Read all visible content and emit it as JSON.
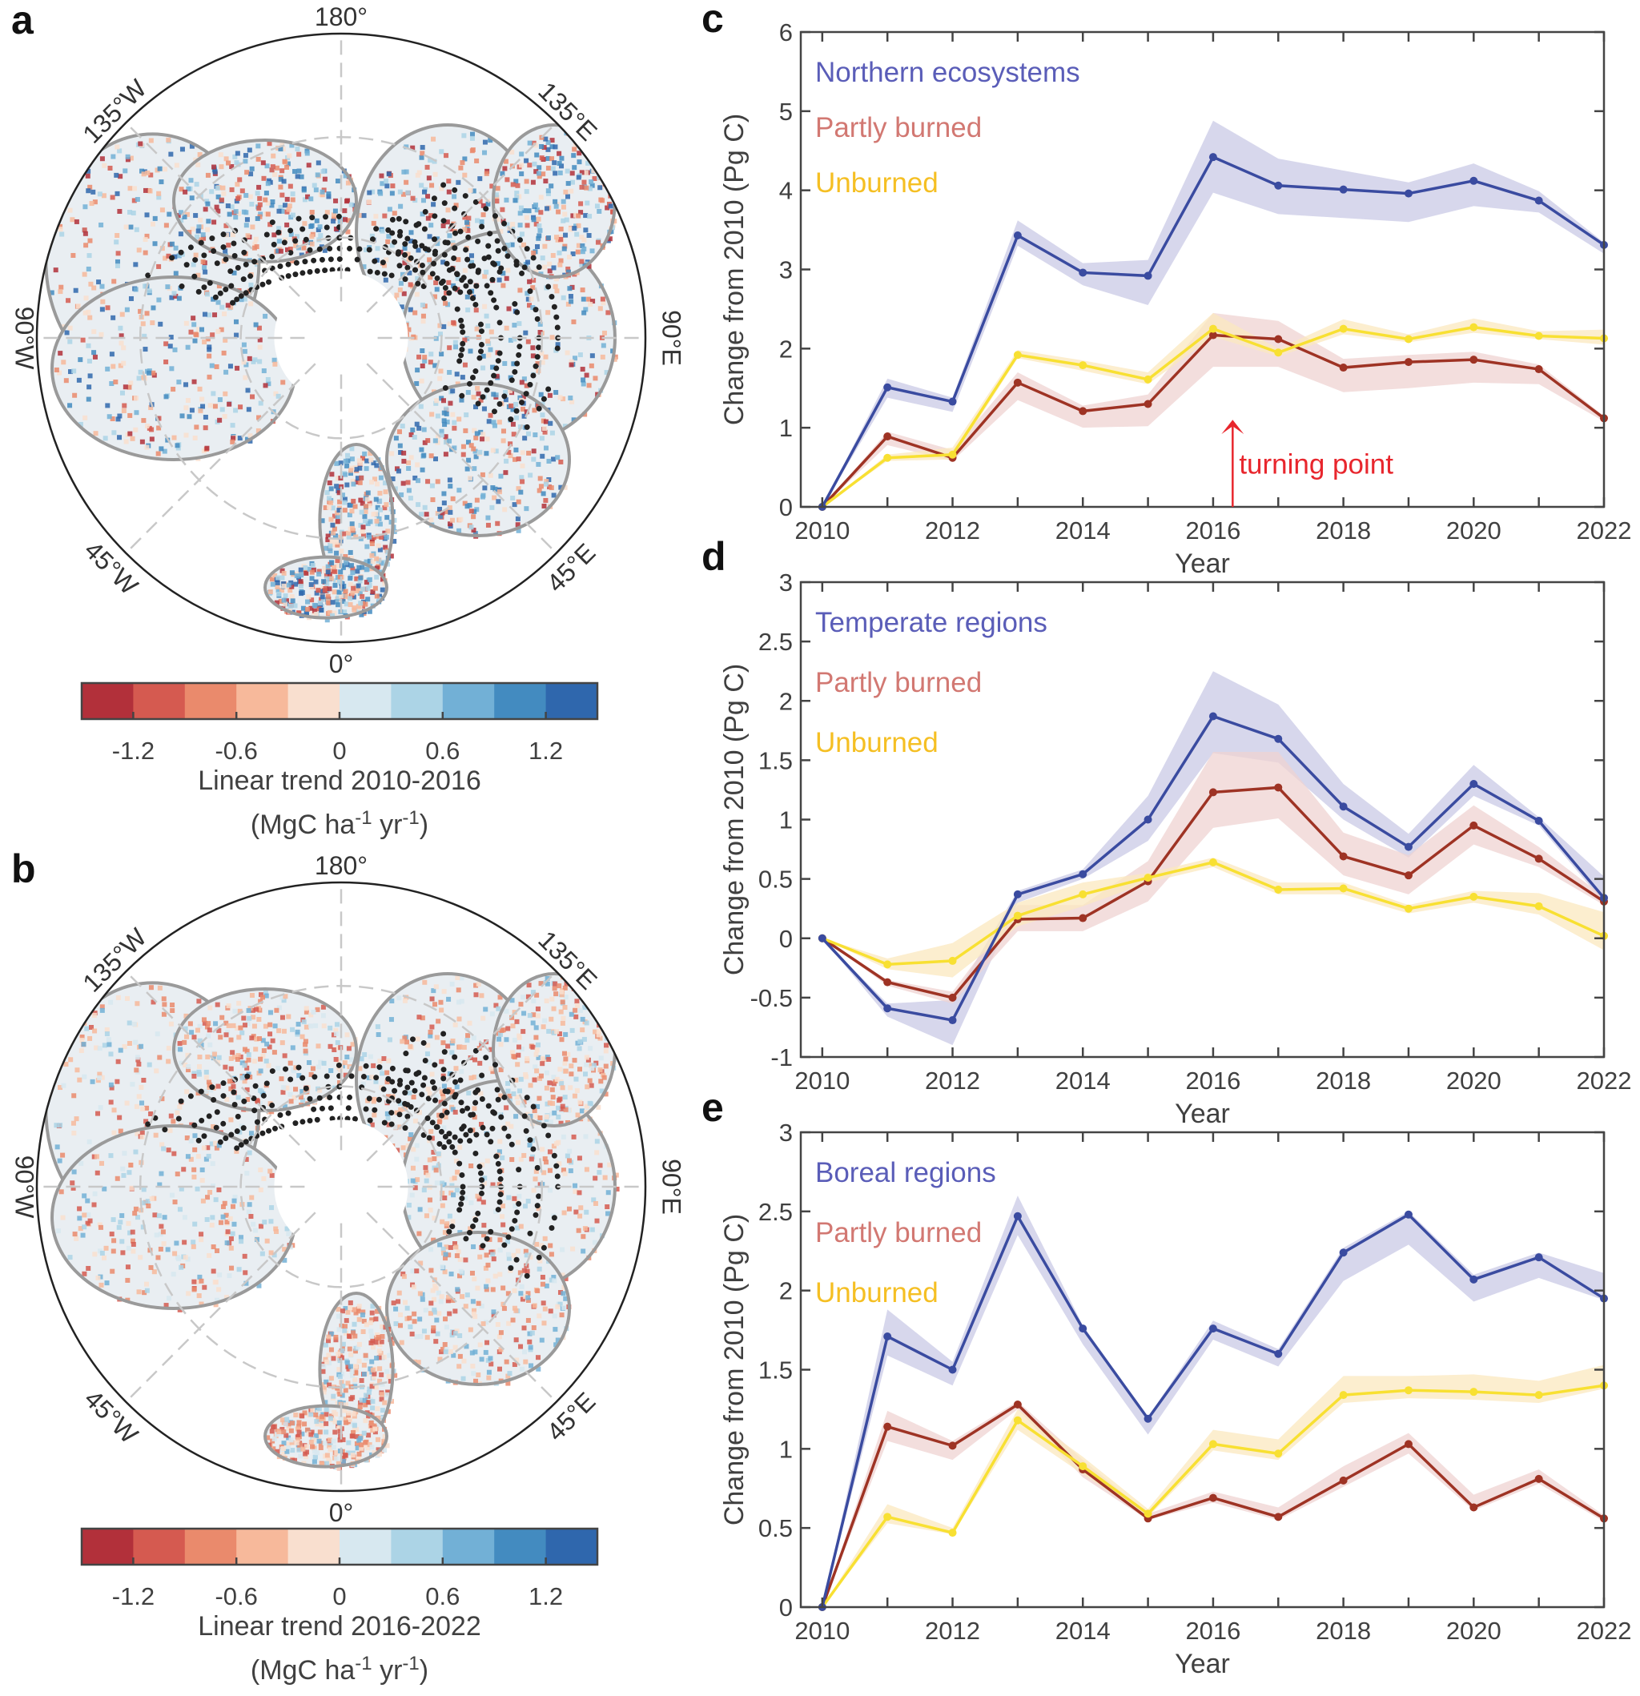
{
  "panels": {
    "a": "a",
    "b": "b",
    "c": "c",
    "d": "d",
    "e": "e"
  },
  "maps": [
    {
      "geo_labels": {
        "top": "180°",
        "bottom": "0°",
        "right": "90°E",
        "left": "90°W",
        "upper_left": "135°W",
        "upper_right": "135°E",
        "lower_left": "45°W",
        "lower_right": "45°E"
      },
      "colorbar": {
        "colors": [
          "#b2303a",
          "#d55a50",
          "#ea8a6c",
          "#f7b99b",
          "#f9dfcf",
          "#d7e8f0",
          "#acd4e6",
          "#72b0d6",
          "#438bc0",
          "#2f67ad"
        ],
        "tick_labels": [
          "-1.2",
          "-0.6",
          "0",
          "0.6",
          "1.2"
        ],
        "title": "Linear trend 2010-2016",
        "units": "(MgC ha",
        "units_sup1": "-1",
        "units_mid": " yr",
        "units_sup2": "-1",
        "units_end": ")"
      }
    },
    {
      "geo_labels": {
        "top": "180°",
        "bottom": "0°",
        "right": "90°E",
        "left": "90°W",
        "upper_left": "135°W",
        "upper_right": "135°E",
        "lower_left": "45°W",
        "lower_right": "45°E"
      },
      "colorbar": {
        "colors": [
          "#b2303a",
          "#d55a50",
          "#ea8a6c",
          "#f7b99b",
          "#f9dfcf",
          "#d7e8f0",
          "#acd4e6",
          "#72b0d6",
          "#438bc0",
          "#2f67ad"
        ],
        "tick_labels": [
          "-1.2",
          "-0.6",
          "0",
          "0.6",
          "1.2"
        ],
        "title": "Linear trend 2016-2022",
        "units": "(MgC ha",
        "units_sup1": "-1",
        "units_mid": " yr",
        "units_sup2": "-1",
        "units_end": ")"
      }
    }
  ],
  "chart_data": [
    {
      "type": "line",
      "panel": "c",
      "xlabel": "Year",
      "ylabel": "Change from 2010 (Pg C)",
      "ylim": [
        0,
        6
      ],
      "yticks": [
        "0",
        "1",
        "2",
        "3",
        "4",
        "5",
        "6"
      ],
      "xticks": [
        "2010",
        "2012",
        "2014",
        "2016",
        "2018",
        "2020",
        "2022"
      ],
      "x": [
        2010,
        2011,
        2012,
        2013,
        2014,
        2015,
        2016,
        2017,
        2018,
        2019,
        2020,
        2021,
        2022
      ],
      "annotation": {
        "text": "turning point",
        "x": 2016.3,
        "color": "#e8262d"
      },
      "series": [
        {
          "name": "Northern ecosystems",
          "color": "#3a4ba0",
          "label_color": "#5a5db8",
          "band_color": "#c9c9e6",
          "values": [
            0,
            1.51,
            1.33,
            3.43,
            2.96,
            2.92,
            4.42,
            4.06,
            4.01,
            3.96,
            4.12,
            3.87,
            3.31
          ],
          "upper": [
            0,
            1.62,
            1.38,
            3.62,
            3.08,
            3.12,
            4.88,
            4.4,
            4.25,
            4.1,
            4.34,
            3.99,
            3.34
          ],
          "lower": [
            0,
            1.38,
            1.2,
            3.3,
            2.8,
            2.55,
            3.97,
            3.7,
            3.65,
            3.6,
            3.8,
            3.72,
            3.2
          ]
        },
        {
          "name": "Partly burned",
          "color": "#9e3324",
          "label_color": "#d27872",
          "band_color": "#efd3d1",
          "values": [
            0,
            0.89,
            0.62,
            1.57,
            1.21,
            1.3,
            2.17,
            2.12,
            1.76,
            1.83,
            1.86,
            1.74,
            1.12
          ],
          "upper": [
            0,
            0.95,
            0.72,
            1.7,
            1.28,
            1.42,
            2.45,
            2.35,
            1.87,
            1.92,
            1.96,
            1.8,
            1.15
          ],
          "lower": [
            0,
            0.78,
            0.58,
            1.35,
            1.0,
            1.02,
            1.77,
            1.77,
            1.45,
            1.5,
            1.57,
            1.55,
            1.08
          ]
        },
        {
          "name": "Unburned",
          "color": "#f8e032",
          "label_color": "#f5bf23",
          "band_color": "#fbe8bf",
          "values": [
            0,
            0.62,
            0.66,
            1.92,
            1.79,
            1.61,
            2.25,
            1.95,
            2.25,
            2.12,
            2.27,
            2.16,
            2.13
          ],
          "upper": [
            0,
            0.66,
            0.75,
            1.98,
            1.85,
            1.7,
            2.45,
            2.0,
            2.37,
            2.18,
            2.38,
            2.22,
            2.24
          ],
          "lower": [
            0,
            0.58,
            0.6,
            1.88,
            1.72,
            1.55,
            2.15,
            1.9,
            2.18,
            2.08,
            2.2,
            2.12,
            2.05
          ]
        }
      ]
    },
    {
      "type": "line",
      "panel": "d",
      "xlabel": "Year",
      "ylabel": "Change from 2010 (Pg C)",
      "ylim": [
        -1,
        3
      ],
      "yticks": [
        "-1",
        "-0.5",
        "0",
        "0.5",
        "1",
        "1.5",
        "2",
        "2.5",
        "3"
      ],
      "xticks": [
        "2010",
        "2012",
        "2014",
        "2016",
        "2018",
        "2020",
        "2022"
      ],
      "x": [
        2010,
        2011,
        2012,
        2013,
        2014,
        2015,
        2016,
        2017,
        2018,
        2019,
        2020,
        2021,
        2022
      ],
      "series": [
        {
          "name": "Temperate regions",
          "color": "#3a4ba0",
          "label_color": "#5a5db8",
          "band_color": "#c9c9e6",
          "values": [
            0,
            -0.59,
            -0.69,
            0.37,
            0.54,
            1.0,
            1.87,
            1.68,
            1.11,
            0.77,
            1.3,
            0.99,
            0.34
          ],
          "upper": [
            0,
            -0.55,
            -0.52,
            0.4,
            0.58,
            1.2,
            2.25,
            1.97,
            1.3,
            0.88,
            1.46,
            1.02,
            0.52
          ],
          "lower": [
            0,
            -0.66,
            -0.9,
            0.3,
            0.5,
            0.82,
            1.56,
            1.48,
            1.0,
            0.68,
            1.2,
            0.95,
            0.3
          ]
        },
        {
          "name": "Partly burned",
          "color": "#9e3324",
          "label_color": "#d27872",
          "band_color": "#efd3d1",
          "values": [
            0,
            -0.37,
            -0.5,
            0.16,
            0.17,
            0.48,
            1.23,
            1.27,
            0.69,
            0.53,
            0.95,
            0.67,
            0.31
          ],
          "upper": [
            0,
            -0.35,
            -0.45,
            0.28,
            0.28,
            0.65,
            1.57,
            1.57,
            0.89,
            0.7,
            1.12,
            0.77,
            0.35
          ],
          "lower": [
            0,
            -0.4,
            -0.55,
            0.06,
            0.06,
            0.31,
            0.93,
            1.01,
            0.53,
            0.37,
            0.79,
            0.6,
            0.28
          ]
        },
        {
          "name": "Unburned",
          "color": "#f8e032",
          "label_color": "#f5bf23",
          "band_color": "#fbe8bf",
          "values": [
            0,
            -0.22,
            -0.19,
            0.19,
            0.37,
            0.51,
            0.64,
            0.41,
            0.42,
            0.25,
            0.35,
            0.27,
            0.02
          ],
          "upper": [
            0,
            -0.17,
            -0.04,
            0.3,
            0.47,
            0.55,
            0.68,
            0.47,
            0.47,
            0.28,
            0.4,
            0.38,
            0.22
          ],
          "lower": [
            0,
            -0.26,
            -0.33,
            0.1,
            0.27,
            0.47,
            0.6,
            0.37,
            0.37,
            0.21,
            0.3,
            0.2,
            -0.1
          ]
        }
      ]
    },
    {
      "type": "line",
      "panel": "e",
      "xlabel": "Year",
      "ylabel": "Change from 2010 (Pg C)",
      "ylim": [
        0,
        3
      ],
      "yticks": [
        "0",
        "0.5",
        "1",
        "1.5",
        "2",
        "2.5",
        "3"
      ],
      "xticks": [
        "2010",
        "2012",
        "2014",
        "2016",
        "2018",
        "2020",
        "2022"
      ],
      "x": [
        2010,
        2011,
        2012,
        2013,
        2014,
        2015,
        2016,
        2017,
        2018,
        2019,
        2020,
        2021,
        2022
      ],
      "series": [
        {
          "name": "Boreal regions",
          "color": "#3a4ba0",
          "label_color": "#5a5db8",
          "band_color": "#c9c9e6",
          "values": [
            0,
            1.71,
            1.5,
            2.47,
            1.76,
            1.19,
            1.76,
            1.6,
            2.24,
            2.48,
            2.07,
            2.21,
            1.95
          ],
          "upper": [
            0,
            1.88,
            1.55,
            2.6,
            1.78,
            1.2,
            1.81,
            1.63,
            2.27,
            2.5,
            2.1,
            2.24,
            2.11
          ],
          "lower": [
            0,
            1.59,
            1.4,
            2.35,
            1.66,
            1.09,
            1.69,
            1.52,
            2.06,
            2.29,
            1.93,
            2.08,
            1.94
          ]
        },
        {
          "name": "Partly burned",
          "color": "#9e3324",
          "label_color": "#d27872",
          "band_color": "#efd3d1",
          "values": [
            0,
            1.14,
            1.02,
            1.28,
            0.87,
            0.56,
            0.69,
            0.57,
            0.8,
            1.03,
            0.63,
            0.81,
            0.56
          ],
          "upper": [
            0,
            1.24,
            1.05,
            1.3,
            0.93,
            0.59,
            0.73,
            0.63,
            0.89,
            1.1,
            0.71,
            0.87,
            0.58
          ],
          "lower": [
            0,
            1.05,
            0.93,
            1.25,
            0.82,
            0.55,
            0.66,
            0.55,
            0.76,
            0.97,
            0.61,
            0.78,
            0.54
          ]
        },
        {
          "name": "Unburned",
          "color": "#f8e032",
          "label_color": "#f5bf23",
          "band_color": "#fbe8bf",
          "values": [
            0,
            0.57,
            0.47,
            1.18,
            0.89,
            0.59,
            1.03,
            0.97,
            1.34,
            1.37,
            1.36,
            1.34,
            1.4
          ],
          "upper": [
            0,
            0.65,
            0.5,
            1.25,
            0.95,
            0.62,
            1.12,
            1.06,
            1.46,
            1.46,
            1.47,
            1.43,
            1.53
          ],
          "lower": [
            0,
            0.53,
            0.46,
            1.12,
            0.84,
            0.57,
            0.99,
            0.93,
            1.29,
            1.32,
            1.31,
            1.29,
            1.38
          ]
        }
      ]
    }
  ]
}
